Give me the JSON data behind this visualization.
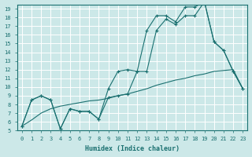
{
  "xlabel": "Humidex (Indice chaleur)",
  "xlim": [
    -0.5,
    23.5
  ],
  "ylim": [
    5,
    19.5
  ],
  "yticks": [
    5,
    6,
    7,
    8,
    9,
    10,
    11,
    12,
    13,
    14,
    15,
    16,
    17,
    18,
    19
  ],
  "xticks": [
    0,
    1,
    2,
    3,
    4,
    5,
    6,
    7,
    8,
    9,
    10,
    11,
    12,
    13,
    14,
    15,
    16,
    17,
    18,
    19,
    20,
    21,
    22,
    23
  ],
  "bg_color": "#cce8e8",
  "line_color": "#1a7070",
  "grid_color": "#ffffff",
  "series1_x": [
    0,
    1,
    2,
    3,
    4,
    5,
    6,
    7,
    8,
    9,
    10,
    11,
    12,
    13,
    14,
    15,
    16,
    17,
    18,
    19,
    20,
    21,
    22,
    23
  ],
  "series1_y": [
    5.5,
    8.5,
    9.0,
    8.5,
    5.2,
    7.5,
    7.2,
    7.2,
    6.3,
    9.8,
    11.8,
    12.0,
    11.8,
    16.5,
    18.2,
    18.2,
    17.5,
    19.2,
    19.2,
    19.8,
    15.2,
    14.2,
    11.8,
    9.8
  ],
  "series2_x": [
    0,
    1,
    2,
    3,
    4,
    5,
    6,
    7,
    8,
    9,
    10,
    11,
    12,
    13,
    14,
    15,
    16,
    17,
    18,
    19,
    20,
    21,
    22,
    23
  ],
  "series2_y": [
    5.5,
    8.5,
    9.0,
    8.5,
    5.2,
    7.5,
    7.2,
    7.2,
    6.3,
    8.8,
    9.0,
    9.2,
    11.8,
    11.8,
    16.5,
    17.8,
    17.2,
    18.2,
    18.2,
    19.8,
    15.2,
    14.2,
    11.8,
    9.8
  ],
  "series3_x": [
    0,
    1,
    2,
    3,
    4,
    5,
    6,
    7,
    8,
    9,
    10,
    11,
    12,
    13,
    14,
    15,
    16,
    17,
    18,
    19,
    20,
    21,
    22,
    23
  ],
  "series3_y": [
    5.5,
    6.2,
    7.0,
    7.5,
    7.8,
    8.0,
    8.2,
    8.4,
    8.5,
    8.7,
    9.0,
    9.2,
    9.5,
    9.8,
    10.2,
    10.5,
    10.8,
    11.0,
    11.3,
    11.5,
    11.8,
    11.9,
    12.0,
    9.8
  ]
}
